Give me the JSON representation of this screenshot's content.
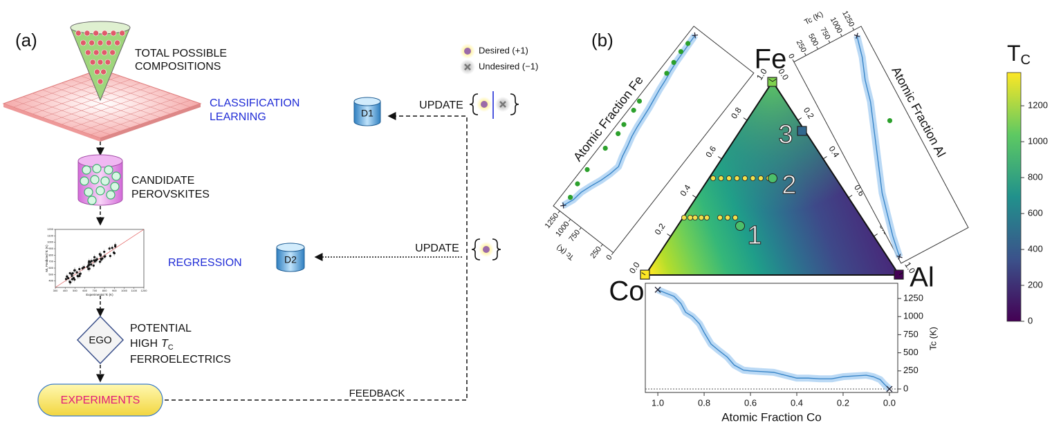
{
  "panel_a": {
    "label": "(a)",
    "total": [
      "TOTAL POSSIBLE",
      "COMPOSITIONS"
    ],
    "classification": [
      "CLASSIFICATION",
      "LEARNING"
    ],
    "candidate": [
      "CANDIDATE",
      "PEROVSKITES"
    ],
    "regression": "REGRESSION",
    "mini_plot": {
      "xlabel": "Experimental Tc (K)",
      "ylabel": "ML Predicted Tc (K)",
      "xlim": [
        300,
        1200
      ],
      "ylim": [
        300,
        1200
      ],
      "xticks": [
        300,
        400,
        500,
        600,
        700,
        800,
        900,
        1000,
        1100,
        1200
      ],
      "yticks": [
        400,
        500,
        600,
        700,
        800,
        900,
        1000,
        1100,
        1200
      ]
    },
    "ego": "EGO",
    "potential": {
      "line1": "POTENTIAL",
      "high": "HIGH",
      "t": "T",
      "sub": "C",
      "line3": "FERROELECTRICS"
    },
    "experiments": "EXPERIMENTS",
    "feedback": "FEEDBACK",
    "d1": "D1",
    "d2": "D2",
    "update1": "UPDATE",
    "update2": "UPDATE",
    "legend": {
      "desired": "Desired (+1)",
      "undesired": "Undesired (−1)"
    }
  },
  "panel_b": {
    "label": "(b)",
    "ternary": {
      "vertices": {
        "fe": "Fe",
        "co": "Co",
        "al": "Al"
      },
      "markers": [
        1,
        2,
        3
      ],
      "fe_ticks": [
        {
          "value": 0,
          "label": "0.0"
        },
        {
          "value": 0.2,
          "label": "0.2"
        },
        {
          "value": 0.4,
          "label": "0.4"
        },
        {
          "value": 0.6,
          "label": "0.6"
        },
        {
          "value": 0.8,
          "label": "0.8"
        },
        {
          "value": 1,
          "label": "1.0"
        }
      ],
      "al_ticks": [
        {
          "value": 0,
          "label": "0.0"
        },
        {
          "value": 0.2,
          "label": "0.2"
        },
        {
          "value": 0.4,
          "label": "0.4"
        },
        {
          "value": 0.6,
          "label": "0.6"
        },
        {
          "value": 0.8,
          "label": "0.8"
        },
        {
          "value": 1,
          "label": "1.0"
        }
      ]
    },
    "fe_plot": {
      "title": "Atomic Fraction Fe",
      "ylabel": "Tc (K)",
      "xlim": [
        -0.03,
        1.03
      ],
      "ylim": [
        0,
        1400
      ],
      "yticks": [
        0,
        250,
        750,
        1000,
        1250
      ],
      "x": [
        0,
        0.05,
        0.1,
        0.15,
        0.2,
        0.25,
        0.3,
        0.35,
        0.4,
        0.45,
        0.5,
        0.55,
        0.6,
        0.65,
        0.7,
        0.75,
        0.8,
        0.85,
        0.9,
        0.95,
        1
      ],
      "values": [
        1260,
        1180,
        1150,
        1080,
        1000,
        940,
        900,
        960,
        1000,
        1050,
        1080,
        1100,
        1120,
        1150,
        1180,
        1200,
        1230,
        1250,
        1260,
        1270,
        1280
      ],
      "points_x": [
        0.05,
        0.12,
        0.2,
        0.33,
        0.42,
        0.47,
        0.55,
        0.6,
        0.78,
        0.84,
        0.9,
        0.95
      ],
      "points_y": [
        1250,
        1300,
        1320,
        1300,
        1280,
        1300,
        1320,
        1340,
        1260,
        1280,
        1300,
        1290
      ]
    },
    "al_plot": {
      "title": "Atomic Fraction Al",
      "ylabel": "Tc (K)",
      "xlim": [
        -0.03,
        1.03
      ],
      "ylim": [
        0,
        1400
      ],
      "yticks": [
        0,
        250,
        500,
        750,
        1000,
        1250
      ],
      "x": [
        0,
        0.1,
        0.2,
        0.3,
        0.4,
        0.5,
        0.6,
        0.7,
        0.8,
        0.9,
        1
      ],
      "values": [
        1250,
        1150,
        1000,
        900,
        750,
        600,
        450,
        300,
        200,
        100,
        30
      ],
      "points_x": [
        0.42
      ],
      "points_y": [
        1050
      ]
    },
    "co_plot": {
      "xlabel": "Atomic Fraction Co",
      "ylabel": "Tc (K)",
      "xlim": [
        1.054,
        -0.036
      ],
      "ylim": [
        -48,
        1460
      ],
      "xticks": [
        {
          "value": 1,
          "label": "1.0"
        },
        {
          "value": 0.8,
          "label": "0.8"
        },
        {
          "value": 0.6,
          "label": "0.6"
        },
        {
          "value": 0.4,
          "label": "0.4"
        },
        {
          "value": 0.2,
          "label": "0.2"
        },
        {
          "value": 0,
          "label": "0.0"
        }
      ],
      "yticks": [
        0,
        250,
        500,
        750,
        1000,
        1250
      ],
      "x": [
        1,
        0.97,
        0.93,
        0.9,
        0.88,
        0.85,
        0.82,
        0.8,
        0.77,
        0.74,
        0.7,
        0.67,
        0.63,
        0.6,
        0.55,
        0.5,
        0.45,
        0.4,
        0.35,
        0.3,
        0.25,
        0.2,
        0.15,
        0.1,
        0.07,
        0.04,
        0.02,
        0
      ],
      "values": [
        1370,
        1330,
        1280,
        1180,
        1060,
        1000,
        900,
        780,
        620,
        540,
        440,
        330,
        260,
        250,
        240,
        230,
        190,
        150,
        150,
        140,
        140,
        170,
        180,
        190,
        170,
        130,
        60,
        0
      ]
    },
    "colorbar": {
      "label": "T",
      "sub": "C",
      "lim": [
        0,
        1385
      ],
      "ticks": [
        0,
        200,
        400,
        600,
        800,
        1000,
        1200
      ]
    }
  }
}
